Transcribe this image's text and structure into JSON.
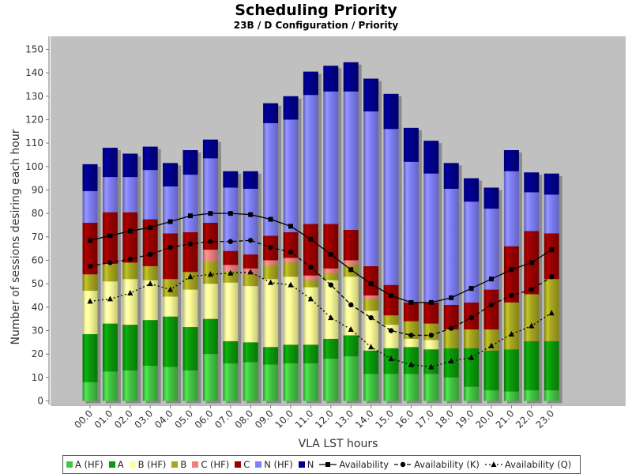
{
  "chart_data": {
    "type": "bar",
    "subtype": "stacked-with-lines",
    "title": "Scheduling Priority",
    "subtitle": "23B / D Configuration /  Priority",
    "xlabel": "VLA LST hours",
    "ylabel": "Number of sessions desiring each hour",
    "ylim": [
      0,
      155
    ],
    "yticks": [
      0,
      10,
      20,
      30,
      40,
      50,
      60,
      70,
      80,
      90,
      100,
      110,
      120,
      130,
      140,
      150
    ],
    "categories": [
      "00.0",
      "01.0",
      "02.0",
      "03.0",
      "04.0",
      "05.0",
      "06.0",
      "07.0",
      "08.0",
      "09.0",
      "10.0",
      "11.0",
      "12.0",
      "13.0",
      "14.0",
      "15.0",
      "16.0",
      "17.0",
      "18.0",
      "19.0",
      "20.0",
      "21.0",
      "22.0",
      "23.0"
    ],
    "series": [
      {
        "name": "A (HF)",
        "kind": "bar",
        "color": "#44c844",
        "values": [
          8,
          12.5,
          13,
          15,
          14.5,
          13,
          20,
          16,
          16.5,
          15.5,
          16,
          16,
          18,
          19,
          11.5,
          11.5,
          11.5,
          11.5,
          10,
          6,
          4.5,
          4,
          4.5,
          4.5
        ]
      },
      {
        "name": "A",
        "kind": "bar",
        "color": "#0a9a0a",
        "values": [
          20.5,
          20.5,
          19.5,
          19.5,
          21.5,
          18.5,
          15,
          9.5,
          8.5,
          7.5,
          8,
          8,
          8.5,
          9,
          10,
          11,
          11.5,
          10.5,
          12.5,
          16.5,
          17,
          18,
          21,
          21
        ]
      },
      {
        "name": "B (HF)",
        "kind": "bar",
        "color": "#ffff99",
        "values": [
          18.5,
          18,
          19.5,
          17,
          8.5,
          16,
          15,
          25,
          24,
          29,
          29,
          24.5,
          25,
          25,
          17,
          10,
          3.5,
          4,
          0,
          0,
          0,
          0,
          0,
          0
        ]
      },
      {
        "name": "B",
        "kind": "bar",
        "color": "#a8a820",
        "values": [
          7,
          7.5,
          7,
          6,
          7.5,
          7.5,
          9.5,
          5,
          5,
          6,
          6,
          3,
          3,
          5,
          5,
          4,
          7.5,
          7,
          8,
          8,
          9,
          20,
          20,
          26.5
        ]
      },
      {
        "name": "C (HF)",
        "kind": "bar",
        "color": "#f08080",
        "values": [
          0,
          0,
          0,
          0,
          0,
          0,
          5,
          2.5,
          2.5,
          2,
          2,
          2,
          2,
          2,
          1.5,
          0,
          0,
          0,
          0,
          0,
          0,
          0,
          0,
          0
        ]
      },
      {
        "name": "C",
        "kind": "bar",
        "color": "#990000",
        "values": [
          22,
          22,
          21.5,
          20,
          19.5,
          17,
          11.5,
          6,
          6,
          10.5,
          11,
          22,
          19,
          13,
          12.5,
          13,
          8,
          9,
          10.5,
          11.5,
          17,
          24,
          27,
          19.5
        ]
      },
      {
        "name": "N (HF)",
        "kind": "bar",
        "color": "#8080f8",
        "values": [
          13.5,
          15,
          15,
          21,
          20,
          24.5,
          27.5,
          27,
          28,
          48,
          48,
          55,
          56.5,
          59,
          66,
          66.5,
          60,
          55,
          49.5,
          43,
          34.5,
          32,
          16.5,
          16.5
        ]
      },
      {
        "name": "N",
        "kind": "bar",
        "color": "#00008b",
        "values": [
          11.5,
          12.5,
          10,
          10,
          10,
          10.5,
          8,
          7,
          7.5,
          8.5,
          10,
          10,
          11,
          12.5,
          14,
          15,
          14.5,
          14,
          11,
          10,
          9,
          9,
          8.5,
          9
        ]
      },
      {
        "name": "Availability",
        "kind": "line",
        "marker": "square",
        "dash": "solid",
        "values": [
          68.5,
          70.5,
          72.5,
          74,
          76.5,
          79,
          80,
          80,
          79.5,
          77.5,
          74.5,
          69,
          62.5,
          56,
          50,
          45,
          42,
          42,
          44,
          48,
          52,
          56,
          59,
          64.5
        ]
      },
      {
        "name": "Availability (K)",
        "kind": "line",
        "marker": "circle",
        "dash": "dashed",
        "values": [
          57.5,
          59,
          60.5,
          62.5,
          65.5,
          67,
          68,
          68,
          68.5,
          65.5,
          63.5,
          57,
          49.5,
          41,
          35.5,
          30,
          28,
          28,
          31,
          35.5,
          41,
          45,
          47.5,
          53
        ]
      },
      {
        "name": "Availability (Q)",
        "kind": "line",
        "marker": "triangle",
        "dash": "dotted",
        "values": [
          42.5,
          43.5,
          46,
          50,
          47.5,
          53,
          54,
          54.5,
          55,
          50.5,
          49.5,
          43.5,
          35.5,
          30.5,
          23,
          18,
          15.5,
          14.5,
          17,
          18.5,
          23.5,
          28.5,
          32,
          37.5
        ]
      }
    ],
    "plot_background": "#c0c0c0",
    "gridlines": false,
    "legend_position": "bottom"
  }
}
